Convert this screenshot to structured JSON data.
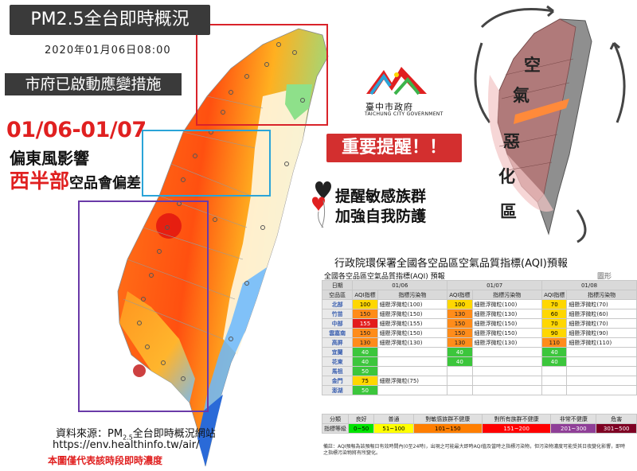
{
  "header": {
    "title": "PM2.5全台即時概況",
    "datetime": "2020年01月06日08:00",
    "notice": "市府已啟動應變措施"
  },
  "warning": {
    "period": "01/06-01/07",
    "east_wind": "偏東風影響",
    "west_part": "西半部",
    "west_rest": "空品會偏差"
  },
  "source": {
    "line1_pre": "資料來源：PM",
    "line1_sub": "2.5",
    "line1_post": "全台即時概況網站",
    "url": "https://env.healthinfo.tw/air/",
    "note": "本圖僅代表該時段即時濃度"
  },
  "logo": {
    "name": "臺中市政府",
    "english": "TAICHUNG CITY GOVERNMENT"
  },
  "alert": {
    "important": "重要提醒！！",
    "line1": "提醒敏感族群",
    "line2": "加強自我防護"
  },
  "inset": {
    "chars": [
      "空",
      "氣",
      "惡",
      "化",
      "區"
    ]
  },
  "aqi": {
    "title": "行政院環保署全國各空品區空氣品質指標(AQI)預報",
    "subtitle": "全國各空品區空氣品質指標(AQI) 預報",
    "legend_link": "圖形",
    "headers": {
      "date": "日期",
      "region": "空品區",
      "aqi": "AQI指標",
      "pollutant": "指標污染物",
      "dates": [
        "01/06",
        "01/07",
        "01/08"
      ]
    },
    "rows": [
      {
        "region": "北部",
        "v": [
          "100",
          "100",
          "70"
        ],
        "c": [
          "y",
          "y",
          "y"
        ],
        "p": [
          "細懸浮微粒(100)",
          "細懸浮微粒(100)",
          "細懸浮微粒(70)"
        ]
      },
      {
        "region": "竹苗",
        "v": [
          "150",
          "130",
          "60"
        ],
        "c": [
          "o",
          "o",
          "y"
        ],
        "p": [
          "細懸浮微粒(150)",
          "細懸浮微粒(130)",
          "細懸浮微粒(60)"
        ]
      },
      {
        "region": "中部",
        "v": [
          "155",
          "150",
          "70"
        ],
        "c": [
          "r",
          "o",
          "y"
        ],
        "p": [
          "細懸浮微粒(155)",
          "細懸浮微粒(150)",
          "細懸浮微粒(70)"
        ]
      },
      {
        "region": "雲嘉南",
        "v": [
          "150",
          "150",
          "90"
        ],
        "c": [
          "o",
          "o",
          "y"
        ],
        "p": [
          "細懸浮微粒(150)",
          "細懸浮微粒(150)",
          "細懸浮微粒(90)"
        ]
      },
      {
        "region": "高屏",
        "v": [
          "130",
          "130",
          "110"
        ],
        "c": [
          "o",
          "o",
          "o"
        ],
        "p": [
          "細懸浮微粒(130)",
          "細懸浮微粒(130)",
          "細懸浮微粒(110)"
        ]
      },
      {
        "region": "宜蘭",
        "v": [
          "40",
          "40",
          "40"
        ],
        "c": [
          "g",
          "g",
          "g"
        ],
        "p": [
          "",
          "",
          ""
        ]
      },
      {
        "region": "花東",
        "v": [
          "40",
          "40",
          "40"
        ],
        "c": [
          "g",
          "g",
          "g"
        ],
        "p": [
          "",
          "",
          ""
        ]
      },
      {
        "region": "馬祖",
        "v": [
          "50",
          "",
          ""
        ],
        "c": [
          "g",
          "",
          ""
        ],
        "p": [
          "",
          "",
          ""
        ]
      },
      {
        "region": "金門",
        "v": [
          "75",
          "",
          ""
        ],
        "c": [
          "y",
          "",
          ""
        ],
        "p": [
          "細懸浮微粒(75)",
          "",
          ""
        ]
      },
      {
        "region": "澎湖",
        "v": [
          "50",
          "",
          ""
        ],
        "c": [
          "g",
          "",
          ""
        ],
        "p": [
          "",
          "",
          ""
        ]
      }
    ],
    "scale": {
      "row1": [
        "分類",
        "良好",
        "普通",
        "對敏感族群不健康",
        "對所有族群不健康",
        "非常不健康",
        "危害"
      ],
      "row2": [
        "指標等級",
        "0~50",
        "51~100",
        "101~150",
        "151~200",
        "201~300",
        "301~500"
      ],
      "colors": [
        "#00e400",
        "#ffff00",
        "#ff7e00",
        "#ff0000",
        "#8f3f97",
        "#7e0023"
      ]
    },
    "footnote": "備註：AQI預報為該預報日有效時間內(0至24時)，出現之可能最大即時AQI值及當時之指標污染物，但污染物濃度可能受其日夜變化影響，即時之指標污染物將有所變化。"
  },
  "colors": {
    "accent_red": "#e02020",
    "dark_box": "#3a3a3a",
    "frame_red": "#d9232a",
    "frame_blue": "#2aa4d8",
    "frame_purple": "#6a3aa8"
  }
}
